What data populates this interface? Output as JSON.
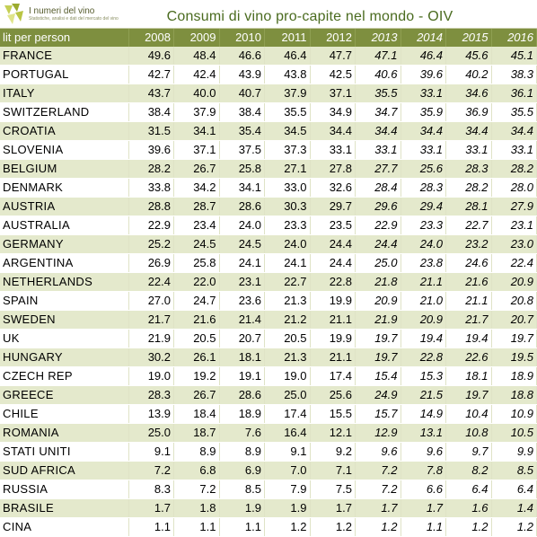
{
  "header": {
    "logo_name": "I numeri del vino",
    "logo_tagline": "Statistiche, analisi e dati del mercato del vino",
    "title": "Consumi di vino pro-capite nel mondo - OIV"
  },
  "table": {
    "unit_label": "lit per person",
    "years": [
      "2008",
      "2009",
      "2010",
      "2011",
      "2012",
      "2013",
      "2014",
      "2015",
      "2016"
    ],
    "projected_from_index": 5,
    "rows": [
      {
        "country": "FRANCE",
        "values": [
          "49.6",
          "48.4",
          "46.6",
          "46.4",
          "47.7",
          "47.1",
          "46.4",
          "45.6",
          "45.1"
        ]
      },
      {
        "country": "PORTUGAL",
        "values": [
          "42.7",
          "42.4",
          "43.9",
          "43.8",
          "42.5",
          "40.6",
          "39.6",
          "40.2",
          "38.3"
        ]
      },
      {
        "country": "ITALY",
        "values": [
          "43.7",
          "40.0",
          "40.7",
          "37.9",
          "37.1",
          "35.5",
          "33.1",
          "34.6",
          "36.1"
        ]
      },
      {
        "country": "SWITZERLAND",
        "values": [
          "38.4",
          "37.9",
          "38.4",
          "35.5",
          "34.9",
          "34.7",
          "35.9",
          "36.9",
          "35.5"
        ]
      },
      {
        "country": "CROATIA",
        "values": [
          "31.5",
          "34.1",
          "35.4",
          "34.5",
          "34.4",
          "34.4",
          "34.4",
          "34.4",
          "34.4"
        ]
      },
      {
        "country": "SLOVENIA",
        "values": [
          "39.6",
          "37.1",
          "37.5",
          "37.3",
          "33.1",
          "33.1",
          "33.1",
          "33.1",
          "33.1"
        ]
      },
      {
        "country": "BELGIUM",
        "values": [
          "28.2",
          "26.7",
          "25.8",
          "27.1",
          "27.8",
          "27.7",
          "25.6",
          "28.3",
          "28.2"
        ]
      },
      {
        "country": "DENMARK",
        "values": [
          "33.8",
          "34.2",
          "34.1",
          "33.0",
          "32.6",
          "28.4",
          "28.3",
          "28.2",
          "28.0"
        ]
      },
      {
        "country": "AUSTRIA",
        "values": [
          "28.8",
          "28.7",
          "28.6",
          "30.3",
          "29.7",
          "29.6",
          "29.4",
          "28.1",
          "27.9"
        ]
      },
      {
        "country": "AUSTRALIA",
        "values": [
          "22.9",
          "23.4",
          "24.0",
          "23.3",
          "23.5",
          "22.9",
          "23.3",
          "22.7",
          "23.1"
        ]
      },
      {
        "country": "GERMANY",
        "values": [
          "25.2",
          "24.5",
          "24.5",
          "24.0",
          "24.4",
          "24.4",
          "24.0",
          "23.2",
          "23.0"
        ]
      },
      {
        "country": "ARGENTINA",
        "values": [
          "26.9",
          "25.8",
          "24.1",
          "24.1",
          "24.4",
          "25.0",
          "23.8",
          "24.6",
          "22.4"
        ]
      },
      {
        "country": "NETHERLANDS",
        "values": [
          "22.4",
          "22.0",
          "23.1",
          "22.7",
          "22.8",
          "21.8",
          "21.1",
          "21.6",
          "20.9"
        ]
      },
      {
        "country": "SPAIN",
        "values": [
          "27.0",
          "24.7",
          "23.6",
          "21.3",
          "19.9",
          "20.9",
          "21.0",
          "21.1",
          "20.8"
        ]
      },
      {
        "country": "SWEDEN",
        "values": [
          "21.7",
          "21.6",
          "21.4",
          "21.2",
          "21.1",
          "21.9",
          "20.9",
          "21.7",
          "20.7"
        ]
      },
      {
        "country": "UK",
        "values": [
          "21.9",
          "20.5",
          "20.7",
          "20.5",
          "19.9",
          "19.7",
          "19.4",
          "19.4",
          "19.7"
        ]
      },
      {
        "country": "HUNGARY",
        "values": [
          "30.2",
          "26.1",
          "18.1",
          "21.3",
          "21.1",
          "19.7",
          "22.8",
          "22.6",
          "19.5"
        ]
      },
      {
        "country": "CZECH REP",
        "values": [
          "19.0",
          "19.2",
          "19.1",
          "19.0",
          "17.4",
          "15.4",
          "15.3",
          "18.1",
          "18.9"
        ]
      },
      {
        "country": "GREECE",
        "values": [
          "28.3",
          "26.7",
          "28.6",
          "25.0",
          "25.6",
          "24.9",
          "21.5",
          "19.7",
          "18.8"
        ]
      },
      {
        "country": "CHILE",
        "values": [
          "13.9",
          "18.4",
          "18.9",
          "17.4",
          "15.5",
          "15.7",
          "14.9",
          "10.4",
          "10.9"
        ]
      },
      {
        "country": "ROMANIA",
        "values": [
          "25.0",
          "18.7",
          "7.6",
          "16.4",
          "12.1",
          "12.9",
          "13.1",
          "10.8",
          "10.5"
        ]
      },
      {
        "country": "STATI UNITI",
        "values": [
          "9.1",
          "8.9",
          "8.9",
          "9.1",
          "9.2",
          "9.6",
          "9.6",
          "9.7",
          "9.9"
        ]
      },
      {
        "country": "SUD AFRICA",
        "values": [
          "7.2",
          "6.8",
          "6.9",
          "7.0",
          "7.1",
          "7.2",
          "7.8",
          "8.2",
          "8.5"
        ]
      },
      {
        "country": "RUSSIA",
        "values": [
          "8.3",
          "7.2",
          "8.5",
          "7.9",
          "7.5",
          "7.2",
          "6.6",
          "6.4",
          "6.4"
        ]
      },
      {
        "country": "BRASILE",
        "values": [
          "1.7",
          "1.8",
          "1.9",
          "1.9",
          "1.7",
          "1.7",
          "1.7",
          "1.6",
          "1.4"
        ]
      },
      {
        "country": "CINA",
        "values": [
          "1.1",
          "1.1",
          "1.1",
          "1.2",
          "1.2",
          "1.2",
          "1.1",
          "1.2",
          "1.2"
        ]
      }
    ]
  }
}
